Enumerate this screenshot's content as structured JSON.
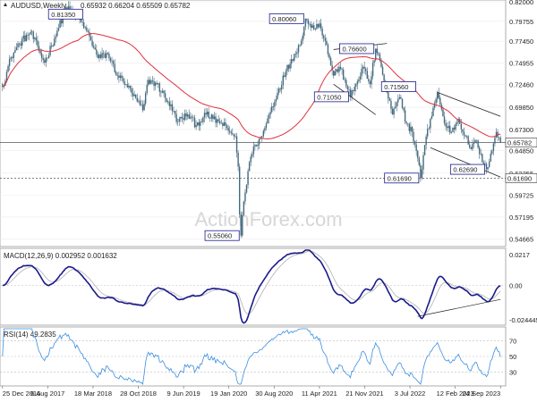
{
  "chart_data": {
    "type": "candlestick",
    "symbol_label": "AUDUSD,Weekly",
    "ohlc_label": "0.65932 0.66204 0.65509 0.65782",
    "watermark": "ActionForex.com",
    "colors": {
      "candle": "#44697d",
      "ma": "#e0303c",
      "macd": "#1a1a8c",
      "signal": "#b0b0b0",
      "rsi": "#3a8ee0",
      "trendline": "#222222",
      "label_border": "#1a1a8c"
    },
    "price_axis": {
      "ylim": [
        0.54,
        0.82
      ],
      "ticks": [
        "0.82000",
        "0.79755",
        "0.77450",
        "0.74955",
        "0.72460",
        "0.69850",
        "0.67300",
        "0.64850",
        "0.62255",
        "0.59725",
        "0.57195",
        "0.54665"
      ]
    },
    "x_axis": {
      "labels": [
        "25 Dec 2016",
        "6 Aug 2017",
        "18 Mar 2018",
        "28 Oct 2018",
        "9 Jun 2019",
        "19 Jan 2020",
        "30 Aug 2020",
        "11 Apr 2021",
        "21 Nov 2021",
        "3 Jul 2022",
        "12 Feb 2023",
        "24 Sep 2023"
      ]
    },
    "anchors": [
      {
        "t": 0,
        "v": 0.722
      },
      {
        "t": 6,
        "v": 0.756
      },
      {
        "t": 12,
        "v": 0.772
      },
      {
        "t": 20,
        "v": 0.785
      },
      {
        "t": 30,
        "v": 0.75
      },
      {
        "t": 40,
        "v": 0.79
      },
      {
        "t": 45,
        "v": 0.8135
      },
      {
        "t": 55,
        "v": 0.8
      },
      {
        "t": 62,
        "v": 0.78
      },
      {
        "t": 68,
        "v": 0.755
      },
      {
        "t": 75,
        "v": 0.76
      },
      {
        "t": 82,
        "v": 0.735
      },
      {
        "t": 88,
        "v": 0.725
      },
      {
        "t": 92,
        "v": 0.715
      },
      {
        "t": 100,
        "v": 0.695
      },
      {
        "t": 104,
        "v": 0.73
      },
      {
        "t": 110,
        "v": 0.725
      },
      {
        "t": 118,
        "v": 0.705
      },
      {
        "t": 125,
        "v": 0.682
      },
      {
        "t": 132,
        "v": 0.69
      },
      {
        "t": 138,
        "v": 0.678
      },
      {
        "t": 145,
        "v": 0.69
      },
      {
        "t": 150,
        "v": 0.685
      },
      {
        "t": 156,
        "v": 0.68
      },
      {
        "t": 162,
        "v": 0.67
      },
      {
        "t": 166,
        "v": 0.665
      },
      {
        "t": 168,
        "v": 0.63
      },
      {
        "t": 169,
        "v": 0.575
      },
      {
        "t": 170,
        "v": 0.5506
      },
      {
        "t": 172,
        "v": 0.59
      },
      {
        "t": 176,
        "v": 0.635
      },
      {
        "t": 180,
        "v": 0.655
      },
      {
        "t": 185,
        "v": 0.665
      },
      {
        "t": 190,
        "v": 0.69
      },
      {
        "t": 196,
        "v": 0.715
      },
      {
        "t": 202,
        "v": 0.74
      },
      {
        "t": 208,
        "v": 0.76
      },
      {
        "t": 212,
        "v": 0.77
      },
      {
        "t": 216,
        "v": 0.8006
      },
      {
        "t": 220,
        "v": 0.79
      },
      {
        "t": 226,
        "v": 0.795
      },
      {
        "t": 230,
        "v": 0.775
      },
      {
        "t": 236,
        "v": 0.735
      },
      {
        "t": 240,
        "v": 0.745
      },
      {
        "t": 244,
        "v": 0.73
      },
      {
        "t": 248,
        "v": 0.7105
      },
      {
        "t": 252,
        "v": 0.725
      },
      {
        "t": 257,
        "v": 0.745
      },
      {
        "t": 262,
        "v": 0.725
      },
      {
        "t": 266,
        "v": 0.766
      },
      {
        "t": 270,
        "v": 0.745
      },
      {
        "t": 274,
        "v": 0.7156
      },
      {
        "t": 278,
        "v": 0.69
      },
      {
        "t": 283,
        "v": 0.71
      },
      {
        "t": 288,
        "v": 0.68
      },
      {
        "t": 292,
        "v": 0.67
      },
      {
        "t": 296,
        "v": 0.64
      },
      {
        "t": 298,
        "v": 0.6169
      },
      {
        "t": 301,
        "v": 0.655
      },
      {
        "t": 305,
        "v": 0.685
      },
      {
        "t": 310,
        "v": 0.7156
      },
      {
        "t": 315,
        "v": 0.68
      },
      {
        "t": 320,
        "v": 0.67
      },
      {
        "t": 325,
        "v": 0.685
      },
      {
        "t": 330,
        "v": 0.665
      },
      {
        "t": 334,
        "v": 0.65
      },
      {
        "t": 338,
        "v": 0.66
      },
      {
        "t": 342,
        "v": 0.635
      },
      {
        "t": 345,
        "v": 0.6269
      },
      {
        "t": 348,
        "v": 0.645
      },
      {
        "t": 352,
        "v": 0.67
      },
      {
        "t": 355,
        "v": 0.6578
      }
    ],
    "labels": [
      {
        "text": "0.81350",
        "t": 45,
        "v": 0.8135,
        "pos": "below"
      },
      {
        "text": "0.80060",
        "t": 216,
        "v": 0.8006,
        "pos": "left"
      },
      {
        "text": "0.76600",
        "t": 266,
        "v": 0.766,
        "pos": "left"
      },
      {
        "text": "0.71050",
        "t": 248,
        "v": 0.7105,
        "pos": "left"
      },
      {
        "text": "0.71560",
        "t": 274,
        "v": 0.7156,
        "pos": "right"
      },
      {
        "text": "0.61690",
        "t": 298,
        "v": 0.6169,
        "pos": "left"
      },
      {
        "text": "0.62690",
        "t": 345,
        "v": 0.6269,
        "pos": "left"
      },
      {
        "text": "0.55060",
        "t": 170,
        "v": 0.5506,
        "pos": "left"
      }
    ],
    "h_lines": [
      {
        "v": 0.6578,
        "style": "solid",
        "label": "0.65782"
      },
      {
        "v": 0.6169,
        "style": "dashed",
        "label": "0.61690"
      }
    ],
    "trendlines": [
      {
        "t1": 236,
        "v1": 0.765,
        "t2": 274,
        "v2": 0.772
      },
      {
        "t1": 236,
        "v1": 0.725,
        "t2": 266,
        "v2": 0.69
      },
      {
        "t1": 310,
        "v1": 0.7156,
        "t2": 355,
        "v2": 0.688
      },
      {
        "t1": 305,
        "v1": 0.652,
        "t2": 355,
        "v2": 0.618
      }
    ],
    "macd": {
      "label": "MACD(12,26,9) 0.002952 0.001632",
      "ticks": [
        "0.0217",
        "0.00",
        "-0.024445"
      ],
      "ylim": [
        -0.027,
        0.025
      ],
      "trendline": {
        "t1": 296,
        "v1": -0.022,
        "t2": 355,
        "v2": -0.01
      }
    },
    "rsi": {
      "label": "RSI(14) 49.2835",
      "ticks": [
        "70",
        "50",
        "30"
      ],
      "ylim": [
        15,
        85
      ]
    }
  }
}
